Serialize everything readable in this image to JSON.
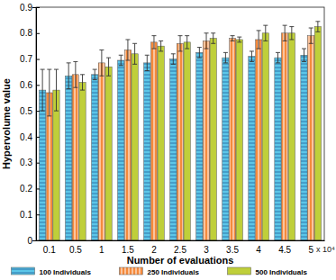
{
  "chart_data": {
    "type": "bar",
    "x_label": "Number of evaluations",
    "y_label": "Hypervolume value",
    "annotations": [
      "x 10⁴"
    ],
    "categories": [
      "0.1",
      "0.5",
      "1",
      "1.5",
      "2",
      "2.5",
      "3",
      "3.5",
      "4",
      "4.5",
      "5"
    ],
    "series": [
      {
        "name": "100 Individuals",
        "color": "#5cc6e8",
        "values": [
          0.58,
          0.635,
          0.64,
          0.695,
          0.685,
          0.7,
          0.725,
          0.705,
          0.71,
          0.705,
          0.715
        ],
        "errors": [
          0.08,
          0.05,
          0.02,
          0.02,
          0.03,
          0.02,
          0.02,
          0.02,
          0.02,
          0.02,
          0.025
        ]
      },
      {
        "name": "250 Individuals",
        "color": "#f58a3c",
        "values": [
          0.57,
          0.64,
          0.685,
          0.735,
          0.765,
          0.76,
          0.77,
          0.78,
          0.775,
          0.8,
          0.79
        ],
        "errors": [
          0.09,
          0.05,
          0.05,
          0.04,
          0.025,
          0.03,
          0.03,
          0.01,
          0.035,
          0.03,
          0.03
        ]
      },
      {
        "name": "500 Individuals",
        "color": "#bfcf3a",
        "values": [
          0.58,
          0.61,
          0.67,
          0.72,
          0.75,
          0.765,
          0.78,
          0.775,
          0.8,
          0.8,
          0.825
        ],
        "errors": [
          0.08,
          0.03,
          0.035,
          0.04,
          0.02,
          0.025,
          0.02,
          0.01,
          0.03,
          0.025,
          0.02
        ]
      }
    ],
    "ylim": [
      0,
      0.9
    ],
    "yticks": [
      0,
      0.1,
      0.2,
      0.3,
      0.4,
      0.5,
      0.6,
      0.7,
      0.8,
      0.9
    ],
    "legend": "bottom",
    "grid": false
  }
}
